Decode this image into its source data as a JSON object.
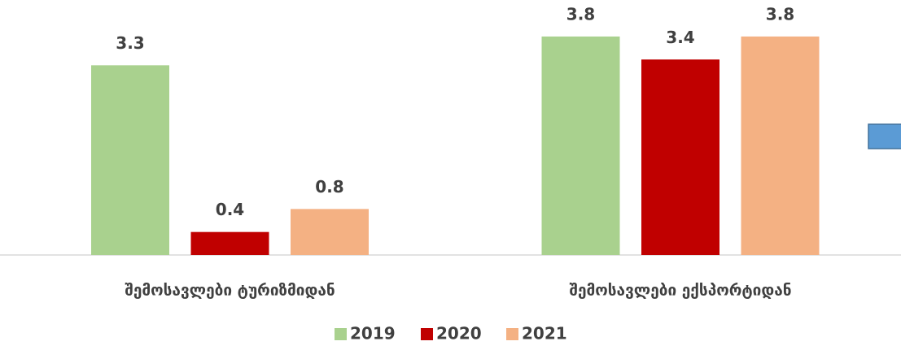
{
  "chart_data": {
    "type": "bar",
    "categories": [
      "შემოსავლები ტურიზმიდან",
      "შემოსავლები ექსპორტიდან"
    ],
    "series": [
      {
        "name": "2019",
        "color": "#a9d18e",
        "values": [
          3.3,
          3.8
        ]
      },
      {
        "name": "2020",
        "color": "#c00000",
        "values": [
          0.4,
          3.4
        ]
      },
      {
        "name": "2021",
        "color": "#f4b183",
        "values": [
          0.8,
          3.8
        ]
      }
    ]
  }
}
